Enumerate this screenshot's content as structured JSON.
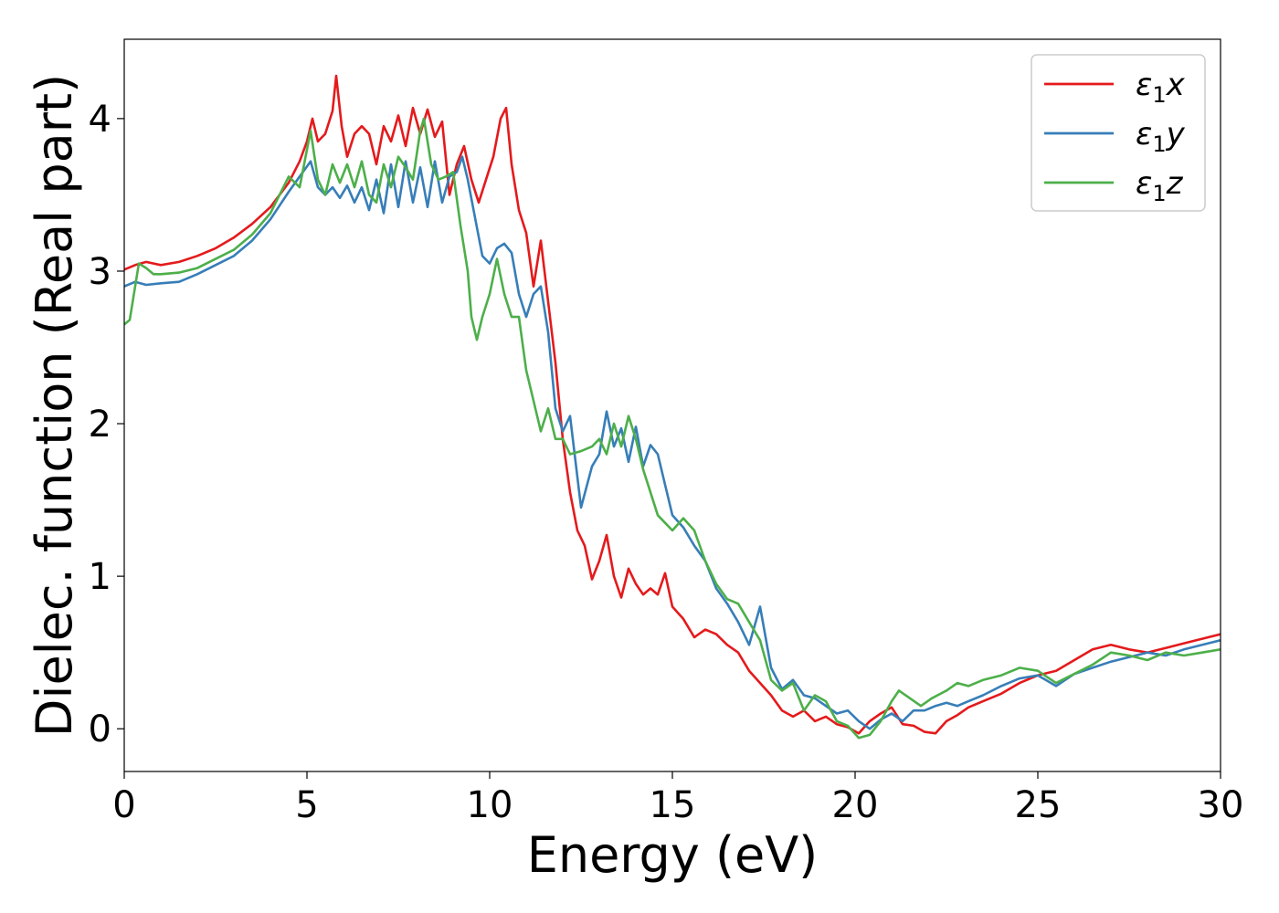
{
  "chart_data": {
    "type": "line",
    "title": "",
    "xlabel": "Energy (eV)",
    "ylabel": "Dielec. function (Real part)",
    "xlim": [
      0,
      30
    ],
    "ylim": [
      -0.28,
      4.52
    ],
    "xticks": [
      0,
      5,
      10,
      15,
      20,
      25,
      30
    ],
    "yticks": [
      0,
      1,
      2,
      3,
      4
    ],
    "grid": false,
    "legend_position": "top-right",
    "series": [
      {
        "name": "ε₁x",
        "legend_base": "ε",
        "legend_sub": "1",
        "legend_var": "x",
        "color": "#e41a1c",
        "x": [
          0,
          0.3,
          0.6,
          1.0,
          1.5,
          2.0,
          2.5,
          3.0,
          3.5,
          4.0,
          4.5,
          4.8,
          5.0,
          5.15,
          5.3,
          5.5,
          5.7,
          5.8,
          5.95,
          6.1,
          6.3,
          6.5,
          6.7,
          6.9,
          7.1,
          7.3,
          7.5,
          7.7,
          7.9,
          8.1,
          8.3,
          8.5,
          8.7,
          8.9,
          9.1,
          9.3,
          9.5,
          9.7,
          9.9,
          10.1,
          10.3,
          10.45,
          10.6,
          10.8,
          11.0,
          11.2,
          11.4,
          11.6,
          11.8,
          12.0,
          12.2,
          12.4,
          12.6,
          12.8,
          13.0,
          13.2,
          13.4,
          13.6,
          13.8,
          14.0,
          14.2,
          14.4,
          14.6,
          14.8,
          15.0,
          15.3,
          15.6,
          15.9,
          16.2,
          16.5,
          16.8,
          17.1,
          17.4,
          17.7,
          18.0,
          18.3,
          18.6,
          18.9,
          19.2,
          19.5,
          19.8,
          20.1,
          20.4,
          20.7,
          21.0,
          21.3,
          21.6,
          21.9,
          22.2,
          22.5,
          22.8,
          23.1,
          23.5,
          24.0,
          24.5,
          25.0,
          25.5,
          26.0,
          26.5,
          27.0,
          27.5,
          28.0,
          28.5,
          29.0,
          29.5,
          30.0
        ],
        "y": [
          3.01,
          3.04,
          3.06,
          3.04,
          3.06,
          3.1,
          3.15,
          3.22,
          3.31,
          3.42,
          3.58,
          3.72,
          3.85,
          4.0,
          3.85,
          3.9,
          4.05,
          4.28,
          3.95,
          3.75,
          3.9,
          3.95,
          3.9,
          3.7,
          3.95,
          3.85,
          4.02,
          3.82,
          4.07,
          3.9,
          4.06,
          3.88,
          3.98,
          3.5,
          3.7,
          3.82,
          3.6,
          3.45,
          3.6,
          3.75,
          4.0,
          4.07,
          3.7,
          3.4,
          3.25,
          2.9,
          3.2,
          2.8,
          2.4,
          1.9,
          1.55,
          1.3,
          1.2,
          0.98,
          1.1,
          1.27,
          1.0,
          0.86,
          1.05,
          0.95,
          0.88,
          0.92,
          0.88,
          1.02,
          0.8,
          0.72,
          0.6,
          0.65,
          0.62,
          0.55,
          0.5,
          0.38,
          0.3,
          0.22,
          0.12,
          0.08,
          0.12,
          0.05,
          0.08,
          0.03,
          0.01,
          -0.03,
          0.05,
          0.1,
          0.14,
          0.03,
          0.02,
          -0.02,
          -0.03,
          0.05,
          0.09,
          0.14,
          0.18,
          0.23,
          0.3,
          0.35,
          0.38,
          0.45,
          0.52,
          0.55,
          0.52,
          0.5,
          0.53,
          0.56,
          0.59,
          0.62
        ]
      },
      {
        "name": "ε₁y",
        "legend_base": "ε",
        "legend_sub": "1",
        "legend_var": "y",
        "color": "#377eb8",
        "x": [
          0,
          0.3,
          0.6,
          1.0,
          1.5,
          2.0,
          2.5,
          3.0,
          3.5,
          4.0,
          4.5,
          4.8,
          5.1,
          5.3,
          5.5,
          5.7,
          5.9,
          6.1,
          6.3,
          6.5,
          6.7,
          6.9,
          7.1,
          7.3,
          7.5,
          7.7,
          7.9,
          8.1,
          8.3,
          8.5,
          8.7,
          8.9,
          9.1,
          9.25,
          9.4,
          9.6,
          9.8,
          10.0,
          10.2,
          10.4,
          10.6,
          10.8,
          11.0,
          11.2,
          11.4,
          11.6,
          11.8,
          12.0,
          12.2,
          12.5,
          12.8,
          13.0,
          13.2,
          13.4,
          13.6,
          13.8,
          14.0,
          14.2,
          14.4,
          14.6,
          14.8,
          15.0,
          15.3,
          15.6,
          15.9,
          16.2,
          16.5,
          16.8,
          17.1,
          17.4,
          17.7,
          18.0,
          18.3,
          18.6,
          18.9,
          19.2,
          19.5,
          19.8,
          20.1,
          20.4,
          20.7,
          21.0,
          21.3,
          21.6,
          21.9,
          22.2,
          22.5,
          22.8,
          23.1,
          23.5,
          24.0,
          24.5,
          25.0,
          25.5,
          26.0,
          26.5,
          27.0,
          27.5,
          28.0,
          28.5,
          29.0,
          29.5,
          30.0
        ],
        "y": [
          2.9,
          2.93,
          2.91,
          2.92,
          2.93,
          2.98,
          3.04,
          3.1,
          3.2,
          3.34,
          3.52,
          3.62,
          3.72,
          3.55,
          3.5,
          3.55,
          3.48,
          3.56,
          3.45,
          3.55,
          3.4,
          3.6,
          3.38,
          3.7,
          3.42,
          3.72,
          3.45,
          3.68,
          3.42,
          3.72,
          3.45,
          3.62,
          3.65,
          3.75,
          3.6,
          3.35,
          3.1,
          3.05,
          3.15,
          3.18,
          3.12,
          2.85,
          2.7,
          2.85,
          2.9,
          2.6,
          2.1,
          1.95,
          2.05,
          1.45,
          1.72,
          1.8,
          2.08,
          1.85,
          1.97,
          1.75,
          1.98,
          1.72,
          1.86,
          1.8,
          1.6,
          1.4,
          1.32,
          1.2,
          1.1,
          0.92,
          0.82,
          0.7,
          0.55,
          0.8,
          0.4,
          0.26,
          0.32,
          0.22,
          0.2,
          0.15,
          0.1,
          0.12,
          0.05,
          0.0,
          0.06,
          0.1,
          0.05,
          0.12,
          0.12,
          0.15,
          0.17,
          0.15,
          0.18,
          0.22,
          0.28,
          0.33,
          0.35,
          0.28,
          0.36,
          0.4,
          0.44,
          0.47,
          0.5,
          0.48,
          0.52,
          0.55,
          0.58
        ]
      },
      {
        "name": "ε₁z",
        "legend_base": "ε",
        "legend_sub": "1",
        "legend_var": "z",
        "color": "#4daf4a",
        "x": [
          0,
          0.15,
          0.4,
          0.6,
          0.8,
          1.0,
          1.5,
          2.0,
          2.5,
          3.0,
          3.5,
          4.0,
          4.5,
          4.8,
          5.1,
          5.3,
          5.5,
          5.7,
          5.9,
          6.1,
          6.3,
          6.5,
          6.7,
          6.9,
          7.1,
          7.3,
          7.5,
          7.7,
          7.9,
          8.1,
          8.2,
          8.4,
          8.6,
          8.8,
          9.0,
          9.2,
          9.4,
          9.5,
          9.65,
          9.8,
          10.0,
          10.2,
          10.4,
          10.6,
          10.8,
          11.0,
          11.2,
          11.4,
          11.6,
          11.8,
          12.0,
          12.2,
          12.5,
          12.8,
          13.0,
          13.2,
          13.4,
          13.6,
          13.8,
          14.0,
          14.2,
          14.4,
          14.6,
          14.8,
          15.0,
          15.3,
          15.6,
          15.9,
          16.2,
          16.5,
          16.8,
          17.1,
          17.4,
          17.7,
          18.0,
          18.3,
          18.6,
          18.9,
          19.2,
          19.5,
          19.8,
          20.1,
          20.4,
          20.7,
          21.0,
          21.2,
          21.5,
          21.8,
          22.1,
          22.5,
          22.8,
          23.1,
          23.5,
          24.0,
          24.5,
          25.0,
          25.5,
          26.0,
          26.5,
          27.0,
          27.5,
          28.0,
          28.5,
          29.0,
          29.5,
          30.0
        ],
        "y": [
          2.65,
          2.68,
          3.05,
          3.02,
          2.98,
          2.98,
          2.99,
          3.02,
          3.08,
          3.14,
          3.24,
          3.38,
          3.62,
          3.55,
          3.92,
          3.6,
          3.5,
          3.7,
          3.58,
          3.7,
          3.55,
          3.72,
          3.5,
          3.45,
          3.7,
          3.55,
          3.75,
          3.68,
          3.6,
          3.92,
          4.0,
          3.7,
          3.6,
          3.62,
          3.65,
          3.3,
          3.0,
          2.7,
          2.55,
          2.7,
          2.85,
          3.08,
          2.85,
          2.7,
          2.7,
          2.35,
          2.15,
          1.95,
          2.1,
          1.9,
          1.9,
          1.8,
          1.82,
          1.85,
          1.9,
          1.8,
          2.0,
          1.85,
          2.05,
          1.9,
          1.7,
          1.55,
          1.4,
          1.35,
          1.3,
          1.38,
          1.3,
          1.1,
          0.95,
          0.85,
          0.82,
          0.7,
          0.58,
          0.32,
          0.25,
          0.3,
          0.12,
          0.22,
          0.18,
          0.05,
          0.02,
          -0.06,
          -0.04,
          0.05,
          0.18,
          0.25,
          0.2,
          0.15,
          0.2,
          0.25,
          0.3,
          0.28,
          0.32,
          0.35,
          0.4,
          0.38,
          0.3,
          0.36,
          0.42,
          0.5,
          0.48,
          0.45,
          0.5,
          0.48,
          0.5,
          0.52
        ]
      }
    ]
  }
}
